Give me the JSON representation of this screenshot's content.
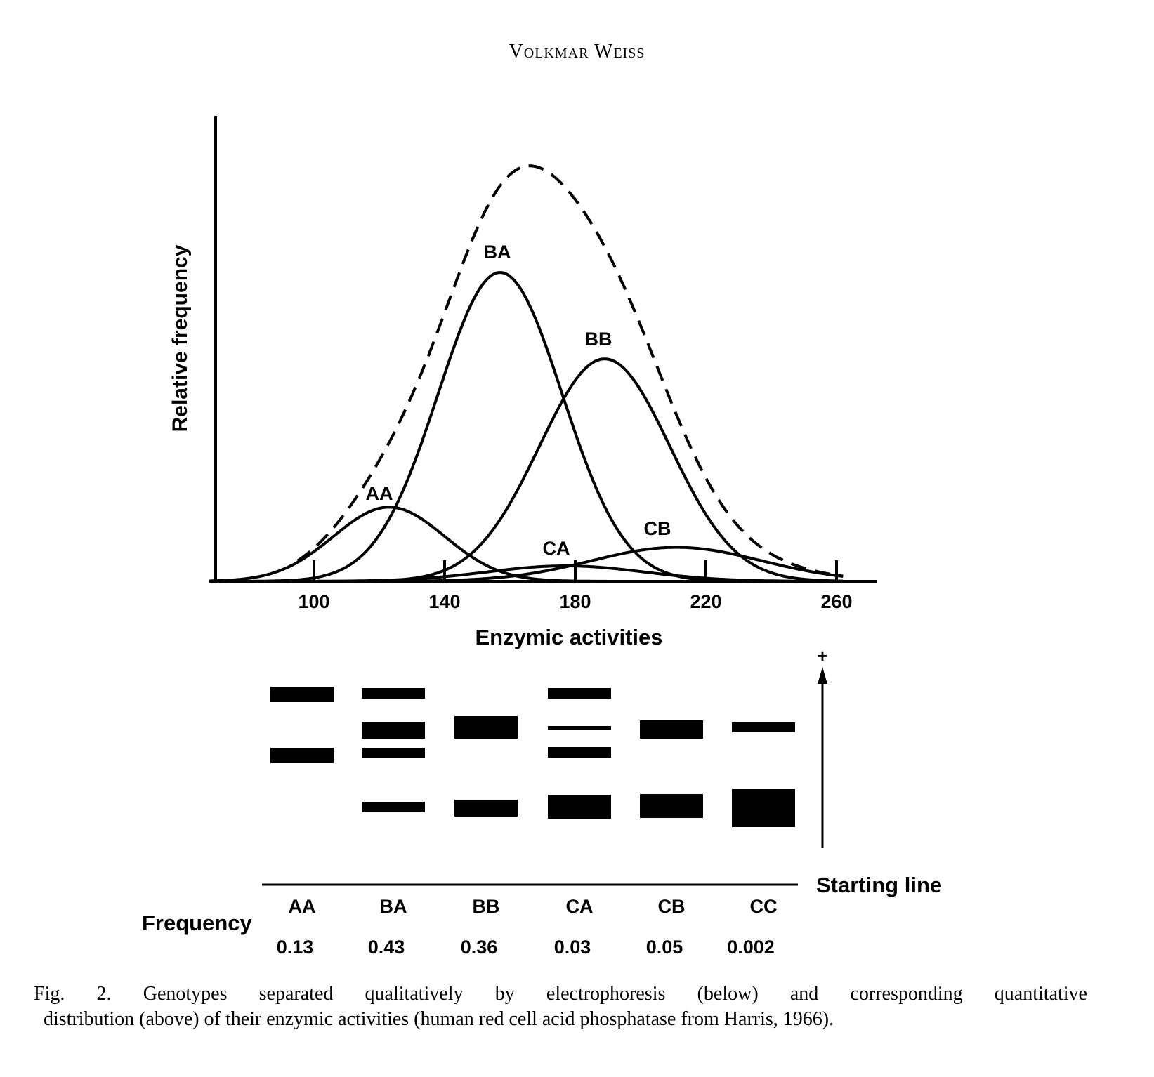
{
  "running_head": "Volkmar Weiss",
  "caption": {
    "line1": "Fig. 2. Genotypes separated qualitatively by electrophoresis (below) and corresponding quantitative",
    "line2": "distribution (above) of their enzymic activities (human red cell acid phosphatase from Harris, 1966)."
  },
  "chart_data": {
    "type": "line",
    "xlabel": "Enzymic activities",
    "ylabel": "Relative frequency",
    "xlim": [
      60,
      270
    ],
    "x_ticks": [
      100,
      140,
      180,
      220,
      260
    ],
    "series": [
      {
        "name": "AA",
        "peak_x": 123,
        "peak_y": 0.24,
        "sd": 17
      },
      {
        "name": "BA",
        "peak_x": 157,
        "peak_y": 1.0,
        "sd": 19
      },
      {
        "name": "BB",
        "peak_x": 189,
        "peak_y": 0.72,
        "sd": 20
      },
      {
        "name": "CA",
        "peak_x": 177,
        "peak_y": 0.05,
        "sd": 24
      },
      {
        "name": "CB",
        "peak_x": 211,
        "peak_y": 0.11,
        "sd": 26
      }
    ],
    "sum_curve": {
      "style": "dashed",
      "description_label": ""
    }
  },
  "electrophoresis": {
    "lanes": [
      "AA",
      "BA",
      "BB",
      "CA",
      "CB",
      "CC"
    ],
    "frequencies": [
      "0.13",
      "0.43",
      "0.36",
      "0.03",
      "0.05",
      "0.002"
    ],
    "frequency_label": "Frequency",
    "starting_line_label": "Starting line",
    "anode_label": "+"
  }
}
